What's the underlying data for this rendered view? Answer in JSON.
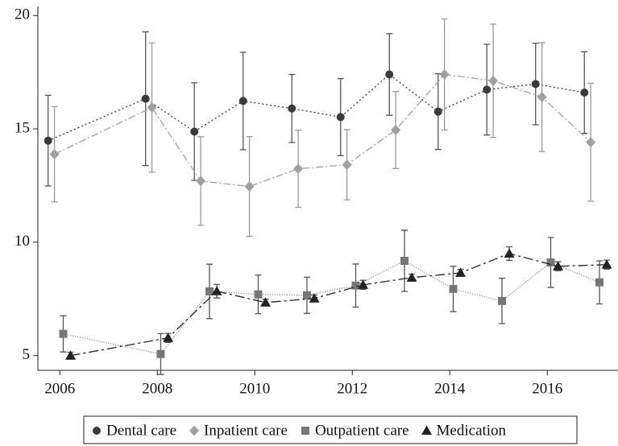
{
  "chart_data": {
    "type": "line",
    "x": [
      2006,
      2008,
      2009,
      2010,
      2011,
      2012,
      2013,
      2014,
      2015,
      2016,
      2017
    ],
    "series": [
      {
        "name": "Dental care",
        "color": "#3a3a3a",
        "marker": "circle",
        "values": [
          14.48,
          16.33,
          14.88,
          16.23,
          15.9,
          15.52,
          17.4,
          15.76,
          16.73,
          16.98,
          16.6
        ],
        "errors": [
          2.0,
          2.95,
          2.15,
          2.15,
          1.5,
          1.7,
          1.8,
          1.67,
          2.0,
          1.8,
          1.8
        ]
      },
      {
        "name": "Inpatient care",
        "color": "#a0a0a0",
        "marker": "diamond",
        "values": [
          13.88,
          15.94,
          12.7,
          12.46,
          13.24,
          13.42,
          14.95,
          17.4,
          17.12,
          16.4,
          14.41
        ],
        "errors": [
          2.1,
          2.85,
          1.95,
          2.2,
          1.7,
          1.55,
          1.7,
          2.45,
          2.5,
          2.4,
          2.6
        ]
      },
      {
        "name": "Outpatient care",
        "color": "#777777",
        "marker": "square",
        "values": [
          5.96,
          5.07,
          7.83,
          7.7,
          7.66,
          8.09,
          9.18,
          7.94,
          7.41,
          9.11,
          8.23
        ],
        "errors": [
          0.8,
          0.9,
          1.2,
          0.85,
          0.8,
          0.95,
          1.35,
          1.0,
          1.0,
          1.1,
          0.95
        ]
      },
      {
        "name": "Medication",
        "color": "#222222",
        "marker": "triangle",
        "values": [
          5.0,
          5.78,
          7.84,
          7.34,
          7.52,
          8.12,
          8.44,
          8.65,
          9.5,
          8.94,
          9.01
        ],
        "errors": [
          0.15,
          0.2,
          0.3,
          0.15,
          0.15,
          0.2,
          0.15,
          0.15,
          0.3,
          0.2,
          0.2
        ]
      }
    ],
    "xlim": [
      2005.55,
      2017.45
    ],
    "xticks": [
      2006,
      2008,
      2010,
      2012,
      2014,
      2016
    ],
    "ylim": [
      4.35,
      20.4
    ],
    "yticks": [
      5,
      10,
      15,
      20
    ],
    "legend": "bottom"
  }
}
